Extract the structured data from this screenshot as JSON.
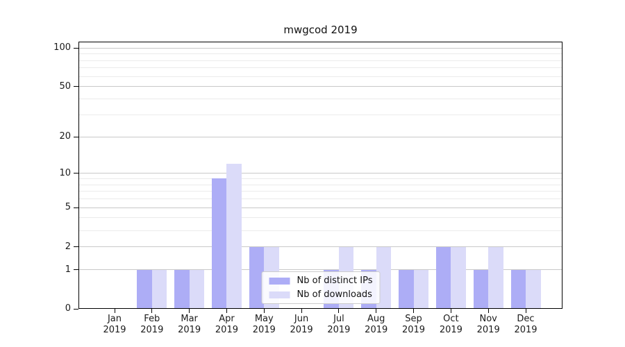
{
  "title": "mwgcod 2019",
  "chart_data": {
    "type": "bar",
    "title": "mwgcod 2019",
    "categories": [
      {
        "month": "Jan",
        "year": "2019"
      },
      {
        "month": "Feb",
        "year": "2019"
      },
      {
        "month": "Mar",
        "year": "2019"
      },
      {
        "month": "Apr",
        "year": "2019"
      },
      {
        "month": "May",
        "year": "2019"
      },
      {
        "month": "Jun",
        "year": "2019"
      },
      {
        "month": "Jul",
        "year": "2019"
      },
      {
        "month": "Aug",
        "year": "2019"
      },
      {
        "month": "Sep",
        "year": "2019"
      },
      {
        "month": "Oct",
        "year": "2019"
      },
      {
        "month": "Nov",
        "year": "2019"
      },
      {
        "month": "Dec",
        "year": "2019"
      }
    ],
    "series": [
      {
        "name": "Nb of distinct IPs",
        "color": "#adadf6",
        "values": [
          0,
          1,
          1,
          9,
          2,
          0,
          1,
          1,
          1,
          2,
          1,
          1
        ]
      },
      {
        "name": "Nb of downloads",
        "color": "#dbdbf9",
        "values": [
          0,
          1,
          1,
          12,
          2,
          0,
          2,
          2,
          1,
          2,
          2,
          1
        ]
      }
    ],
    "yscale": "log1p",
    "ylim": [
      0,
      112
    ],
    "major_yticks": [
      0,
      1,
      2,
      5,
      10,
      20,
      50,
      100
    ],
    "minor_yticks": [
      3,
      4,
      6,
      7,
      8,
      9,
      30,
      40,
      60,
      70,
      80,
      90
    ],
    "xlabel": "",
    "ylabel": "",
    "grid": true,
    "legend_position": "lower center"
  },
  "colors": {
    "bar_distinct_ips": "#adadf6",
    "bar_downloads": "#dbdbf9",
    "grid_major": "#c8c8c8",
    "grid_minor": "#ebebeb",
    "axis": "#000000",
    "text": "#1a1a1a",
    "legend_border": "#cccccc"
  }
}
